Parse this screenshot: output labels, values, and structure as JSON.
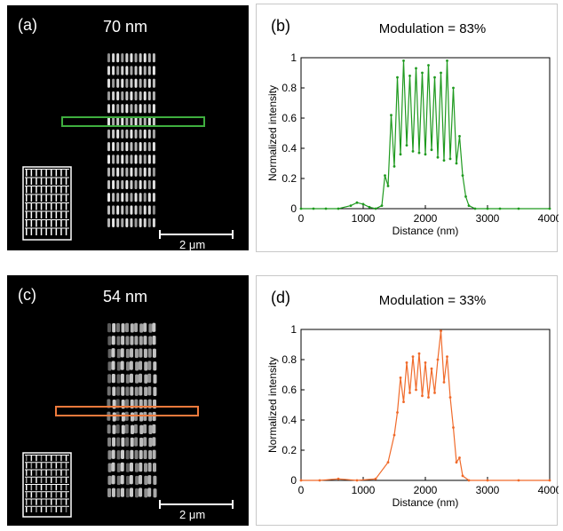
{
  "panels": [
    {
      "id": "a",
      "label": "(a)",
      "title": "70 nm",
      "scale_bar": "2 μm",
      "roi_color": "#3fae3f",
      "pitch_nm": 70
    },
    {
      "id": "c",
      "label": "(c)",
      "title": "54 nm",
      "scale_bar": "2 μm",
      "roi_color": "#f07a3c",
      "pitch_nm": 54
    }
  ],
  "chart_data": [
    {
      "panel_label": "(b)",
      "type": "line",
      "title": "Modulation = 83%",
      "xlabel": "Distance (nm)",
      "ylabel": "Normalized intensity",
      "xlim": [
        0,
        4000
      ],
      "ylim": [
        0,
        1
      ],
      "xticks": [
        0,
        1000,
        2000,
        3000,
        4000
      ],
      "yticks": [
        0,
        0.2,
        0.4,
        0.6,
        0.8,
        1
      ],
      "grid": false,
      "color": "#1f9a1f",
      "series": [
        {
          "x": [
            0,
            200,
            400,
            600,
            800,
            900,
            1000,
            1100,
            1200,
            1300,
            1350,
            1400,
            1450,
            1500,
            1550,
            1600,
            1650,
            1700,
            1750,
            1800,
            1850,
            1900,
            1950,
            2000,
            2050,
            2100,
            2150,
            2200,
            2250,
            2300,
            2350,
            2400,
            2450,
            2500,
            2550,
            2600,
            2650,
            2700,
            2800,
            3000,
            3200,
            3500,
            4000
          ],
          "y": [
            0.0,
            0.0,
            0.0,
            0.0,
            0.02,
            0.04,
            0.03,
            0.01,
            0.0,
            0.02,
            0.22,
            0.15,
            0.62,
            0.28,
            0.87,
            0.36,
            0.98,
            0.42,
            0.88,
            0.38,
            0.93,
            0.37,
            0.9,
            0.36,
            0.95,
            0.39,
            0.87,
            0.34,
            0.9,
            0.32,
            0.98,
            0.33,
            0.8,
            0.3,
            0.48,
            0.22,
            0.08,
            0.02,
            0.0,
            0.0,
            0.0,
            0.0,
            0.0
          ]
        }
      ]
    },
    {
      "panel_label": "(d)",
      "type": "line",
      "title": "Modulation = 33%",
      "xlabel": "Distance (nm)",
      "ylabel": "Normalized intensity",
      "xlim": [
        0,
        4000
      ],
      "ylim": [
        0,
        1
      ],
      "xticks": [
        0,
        1000,
        2000,
        3000,
        4000
      ],
      "yticks": [
        0,
        0.2,
        0.4,
        0.6,
        0.8,
        1
      ],
      "grid": false,
      "color": "#f06a2a",
      "series": [
        {
          "x": [
            0,
            300,
            600,
            900,
            1200,
            1400,
            1500,
            1550,
            1600,
            1650,
            1700,
            1750,
            1800,
            1850,
            1900,
            1950,
            2000,
            2050,
            2100,
            2150,
            2200,
            2250,
            2300,
            2350,
            2400,
            2450,
            2500,
            2550,
            2600,
            2700,
            3000,
            3500,
            4000
          ],
          "y": [
            0.0,
            0.0,
            0.01,
            0.0,
            0.01,
            0.12,
            0.3,
            0.45,
            0.68,
            0.52,
            0.78,
            0.58,
            0.82,
            0.6,
            0.84,
            0.56,
            0.78,
            0.55,
            0.74,
            0.58,
            0.8,
            0.99,
            0.65,
            0.82,
            0.55,
            0.35,
            0.12,
            0.15,
            0.03,
            0.0,
            0.0,
            0.0,
            0.0
          ]
        }
      ]
    }
  ]
}
